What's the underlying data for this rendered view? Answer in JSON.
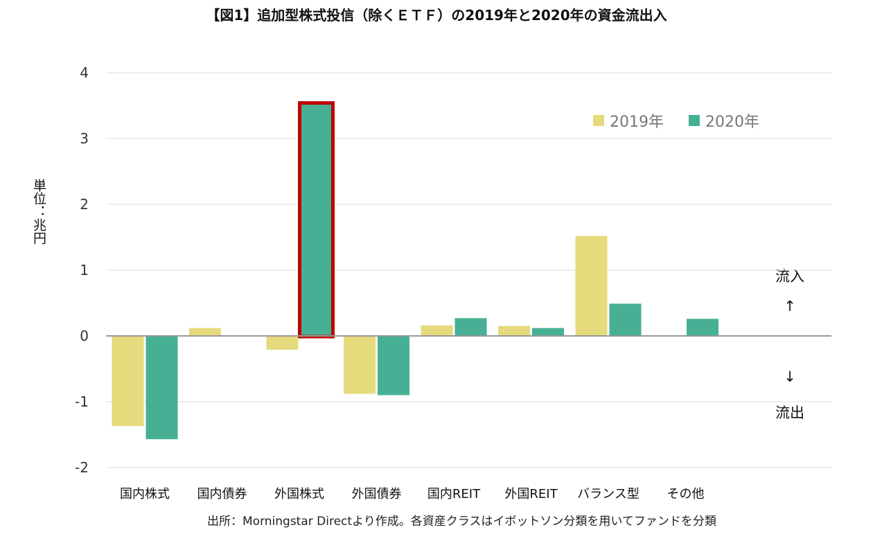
{
  "title": "【図1】追加型株式投信（除くＥＴＦ）の2019年と2020年の資金流出入",
  "unit_label": "単位：兆円",
  "inflow_label": "流入",
  "inflow_arrow": "↑",
  "outflow_arrow": "↓",
  "outflow_label": "流出",
  "source": "出所：Morningstar Directより作成。各資産クラスはイボットソン分類を用いてファンドを分類",
  "colors": {
    "s2019": "#e5db7c",
    "s2020": "#47b094",
    "highlight": "#c00000",
    "grid": "#dddddd",
    "zero": "#999999"
  },
  "chart_data": {
    "type": "bar",
    "categories": [
      "国内株式",
      "国内債券",
      "外国株式",
      "外国債券",
      "国内REIT",
      "外国REIT",
      "バランス型",
      "その他"
    ],
    "series": [
      {
        "name": "2019年",
        "values": [
          -1.37,
          0.12,
          -0.21,
          -0.88,
          0.16,
          0.15,
          1.52,
          0.01
        ]
      },
      {
        "name": "2020年",
        "values": [
          -1.57,
          0.01,
          3.53,
          -0.9,
          0.27,
          0.12,
          0.49,
          0.26
        ]
      }
    ],
    "highlight": {
      "category": "外国株式",
      "series": "2020年"
    },
    "ylim": [
      -2,
      4
    ],
    "yticks": [
      "-2",
      "-1",
      "0",
      "1",
      "2",
      "3",
      "4"
    ],
    "grid": true,
    "legend_position": "top-right"
  }
}
